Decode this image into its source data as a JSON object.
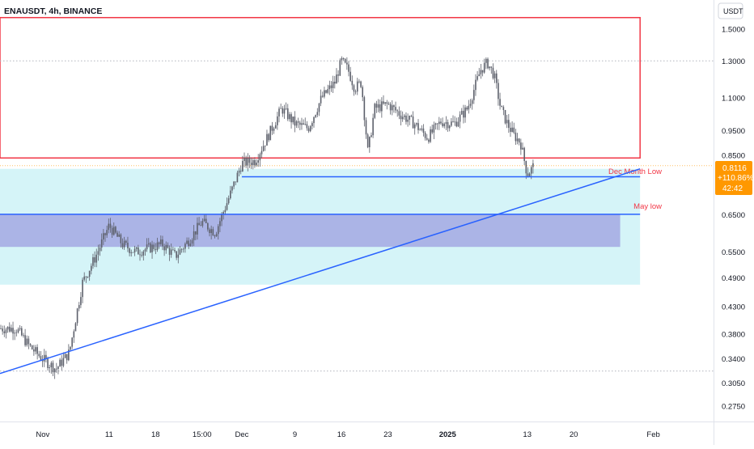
{
  "header": {
    "symbol_line": "ENAUSDT, 4h, BINANCE"
  },
  "price_axis": {
    "currency": "USDT",
    "ticks": [
      "1.5000",
      "1.3000",
      "1.1000",
      "0.9500",
      "0.8500",
      "0.6500",
      "0.5500",
      "0.4900",
      "0.4300",
      "0.3800",
      "0.3400",
      "0.3050",
      "0.2750"
    ]
  },
  "price_badge": {
    "price": "0.8116",
    "change": "+110.86%",
    "countdown": "42:42",
    "color": "#ff9800"
  },
  "time_axis": {
    "ticks": [
      "Nov",
      "11",
      "18",
      "15:00",
      "Dec",
      "9",
      "16",
      "23",
      "2025",
      "13",
      "20",
      "Feb"
    ]
  },
  "annotations": {
    "dec_month_low": {
      "label": "Dec Month Low",
      "price": 0.772,
      "color": "#2962ff",
      "label_color": "#f23645"
    },
    "may_low": {
      "label": "May low",
      "price": 0.652,
      "color": "#2962ff",
      "label_color": "#f23645"
    }
  },
  "colors": {
    "up": "#26a69a",
    "down": "#5d606b",
    "candle": "#5d606b",
    "resistance_box": "#f23645",
    "support_zone": "#b2ebf2",
    "demand_box": "#9c9fe0",
    "trendline": "#2962ff"
  },
  "chart_data": {
    "type": "candlestick",
    "symbol": "ENAUSDT",
    "interval": "4h",
    "exchange": "BINANCE",
    "y_scale": "log",
    "ylim": [
      0.26,
      1.62
    ],
    "last_price": 0.8116,
    "change_pct": "+110.86%",
    "zones": [
      {
        "kind": "resistance-rectangle",
        "price_top": 1.58,
        "price_bottom": 0.84,
        "from": "2024-10-28",
        "to": "2025-01-30"
      },
      {
        "kind": "support-zone",
        "price_top": 0.8,
        "price_bottom": 0.475,
        "from": "2024-10-28",
        "to": "2025-01-30"
      },
      {
        "kind": "demand-box",
        "price_top": 0.652,
        "price_bottom": 0.563,
        "from": "2024-10-28",
        "to": "2025-01-27"
      }
    ],
    "lines": [
      {
        "kind": "horizontal",
        "name": "Dec Month Low",
        "price": 0.772
      },
      {
        "kind": "horizontal",
        "name": "May low",
        "price": 0.652
      },
      {
        "kind": "trendline",
        "from_date": "2024-10-28",
        "from_price": 0.322,
        "to_date": "2025-01-30",
        "to_price": 0.8
      }
    ],
    "price_path": [
      [
        "2024-10-28",
        0.39
      ],
      [
        "2024-10-30",
        0.36
      ],
      [
        "2024-11-01",
        0.34
      ],
      [
        "2024-11-03",
        0.325
      ],
      [
        "2024-11-05",
        0.35
      ],
      [
        "2024-11-07",
        0.48
      ],
      [
        "2024-11-09",
        0.54
      ],
      [
        "2024-11-11",
        0.62
      ],
      [
        "2024-11-13",
        0.57
      ],
      [
        "2024-11-15",
        0.55
      ],
      [
        "2024-11-17",
        0.56
      ],
      [
        "2024-11-19",
        0.57
      ],
      [
        "2024-11-21",
        0.54
      ],
      [
        "2024-11-23",
        0.58
      ],
      [
        "2024-11-25",
        0.63
      ],
      [
        "2024-11-27",
        0.6
      ],
      [
        "2024-11-29",
        0.7
      ],
      [
        "2024-12-01",
        0.82
      ],
      [
        "2024-12-03",
        0.83
      ],
      [
        "2024-12-05",
        0.93
      ],
      [
        "2024-12-07",
        1.05
      ],
      [
        "2024-12-09",
        0.98
      ],
      [
        "2024-12-11",
        0.96
      ],
      [
        "2024-12-13",
        1.1
      ],
      [
        "2024-12-15",
        1.18
      ],
      [
        "2024-12-16",
        1.3
      ],
      [
        "2024-12-17",
        1.25
      ],
      [
        "2024-12-18",
        1.15
      ],
      [
        "2024-12-19",
        1.18
      ],
      [
        "2024-12-20",
        0.86
      ],
      [
        "2024-12-21",
        1.05
      ],
      [
        "2024-12-23",
        1.07
      ],
      [
        "2024-12-25",
        1.02
      ],
      [
        "2024-12-27",
        0.98
      ],
      [
        "2024-12-29",
        0.92
      ],
      [
        "2024-12-31",
        0.99
      ],
      [
        "2025-01-02",
        0.98
      ],
      [
        "2025-01-04",
        1.05
      ],
      [
        "2025-01-06",
        1.25
      ],
      [
        "2025-01-07",
        1.29
      ],
      [
        "2025-01-08",
        1.22
      ],
      [
        "2025-01-09",
        1.05
      ],
      [
        "2025-01-10",
        0.98
      ],
      [
        "2025-01-11",
        0.93
      ],
      [
        "2025-01-12",
        0.9
      ],
      [
        "2025-01-13",
        0.78
      ],
      [
        "2025-01-14",
        0.8116
      ]
    ]
  }
}
